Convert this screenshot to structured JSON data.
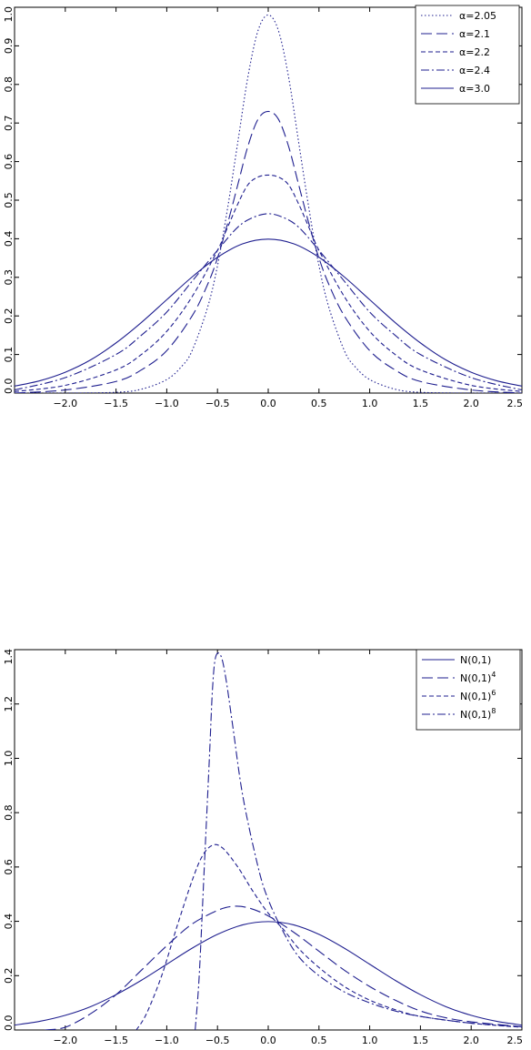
{
  "chart_data": [
    {
      "type": "line",
      "title": "",
      "xlabel": "",
      "ylabel": "",
      "xlim": [
        -2.5,
        2.5
      ],
      "ylim": [
        0.0,
        1.0
      ],
      "x_ticks": [
        "−2.0",
        "−1.5",
        "−1.0",
        "−0.5",
        "0.0",
        "0.5",
        "1.0",
        "1.5",
        "2.0",
        "2.5"
      ],
      "x_tick_values": [
        -2.0,
        -1.5,
        -1.0,
        -0.5,
        0.0,
        0.5,
        1.0,
        1.5,
        2.0,
        2.5
      ],
      "y_ticks": [
        "0.0",
        "0.1",
        "0.2",
        "0.3",
        "0.4",
        "0.5",
        "0.6",
        "0.7",
        "0.8",
        "0.9",
        "1.0"
      ],
      "y_tick_values": [
        0.0,
        0.1,
        0.2,
        0.3,
        0.4,
        0.5,
        0.6,
        0.7,
        0.8,
        0.9,
        1.0
      ],
      "legend_position": "top-right",
      "series": [
        {
          "name": "α=2.05",
          "dash": "1.5,2.5",
          "points": [
            [
              -2.5,
              0.0
            ],
            [
              -2.0,
              0.0
            ],
            [
              -1.5,
              0.002
            ],
            [
              -1.25,
              0.01
            ],
            [
              -1.0,
              0.035
            ],
            [
              -0.85,
              0.07
            ],
            [
              -0.75,
              0.11
            ],
            [
              -0.6,
              0.22
            ],
            [
              -0.5,
              0.33
            ],
            [
              -0.4,
              0.48
            ],
            [
              -0.3,
              0.65
            ],
            [
              -0.2,
              0.82
            ],
            [
              -0.1,
              0.94
            ],
            [
              0.0,
              0.98
            ],
            [
              0.1,
              0.94
            ],
            [
              0.2,
              0.82
            ],
            [
              0.3,
              0.65
            ],
            [
              0.4,
              0.48
            ],
            [
              0.5,
              0.33
            ],
            [
              0.6,
              0.22
            ],
            [
              0.75,
              0.11
            ],
            [
              0.85,
              0.07
            ],
            [
              1.0,
              0.035
            ],
            [
              1.25,
              0.01
            ],
            [
              1.5,
              0.002
            ],
            [
              2.0,
              0.0
            ],
            [
              2.5,
              0.0
            ]
          ]
        },
        {
          "name": "α=2.1",
          "dash": "12,5",
          "points": [
            [
              -2.5,
              0.0
            ],
            [
              -2.0,
              0.008
            ],
            [
              -1.5,
              0.03
            ],
            [
              -1.25,
              0.06
            ],
            [
              -1.0,
              0.11
            ],
            [
              -0.75,
              0.2
            ],
            [
              -0.6,
              0.28
            ],
            [
              -0.5,
              0.35
            ],
            [
              -0.4,
              0.44
            ],
            [
              -0.3,
              0.54
            ],
            [
              -0.2,
              0.64
            ],
            [
              -0.1,
              0.71
            ],
            [
              0.0,
              0.73
            ],
            [
              0.1,
              0.71
            ],
            [
              0.2,
              0.64
            ],
            [
              0.3,
              0.54
            ],
            [
              0.4,
              0.44
            ],
            [
              0.5,
              0.35
            ],
            [
              0.6,
              0.28
            ],
            [
              0.75,
              0.2
            ],
            [
              1.0,
              0.11
            ],
            [
              1.25,
              0.06
            ],
            [
              1.5,
              0.03
            ],
            [
              2.0,
              0.008
            ],
            [
              2.5,
              0.0
            ]
          ]
        },
        {
          "name": "α=2.2",
          "dash": "5,3",
          "points": [
            [
              -2.5,
              0.004
            ],
            [
              -2.0,
              0.02
            ],
            [
              -1.5,
              0.06
            ],
            [
              -1.25,
              0.1
            ],
            [
              -1.0,
              0.16
            ],
            [
              -0.75,
              0.25
            ],
            [
              -0.5,
              0.37
            ],
            [
              -0.4,
              0.43
            ],
            [
              -0.3,
              0.49
            ],
            [
              -0.2,
              0.54
            ],
            [
              -0.1,
              0.56
            ],
            [
              0.0,
              0.565
            ],
            [
              0.1,
              0.56
            ],
            [
              0.2,
              0.54
            ],
            [
              0.3,
              0.49
            ],
            [
              0.4,
              0.43
            ],
            [
              0.5,
              0.37
            ],
            [
              0.75,
              0.25
            ],
            [
              1.0,
              0.16
            ],
            [
              1.25,
              0.1
            ],
            [
              1.5,
              0.06
            ],
            [
              2.0,
              0.02
            ],
            [
              2.5,
              0.004
            ]
          ]
        },
        {
          "name": "α=2.4",
          "dash": "9,3,2,3",
          "points": [
            [
              -2.5,
              0.008
            ],
            [
              -2.0,
              0.04
            ],
            [
              -1.5,
              0.1
            ],
            [
              -1.25,
              0.15
            ],
            [
              -1.0,
              0.21
            ],
            [
              -0.75,
              0.29
            ],
            [
              -0.5,
              0.37
            ],
            [
              -0.3,
              0.43
            ],
            [
              -0.15,
              0.455
            ],
            [
              0.0,
              0.465
            ],
            [
              0.15,
              0.455
            ],
            [
              0.3,
              0.43
            ],
            [
              0.5,
              0.37
            ],
            [
              0.75,
              0.29
            ],
            [
              1.0,
              0.21
            ],
            [
              1.25,
              0.15
            ],
            [
              1.5,
              0.1
            ],
            [
              2.0,
              0.04
            ],
            [
              2.5,
              0.008
            ]
          ]
        },
        {
          "name": "α=3.0",
          "dash": "",
          "points": [
            [
              -2.5,
              0.018
            ],
            [
              -2.25,
              0.032
            ],
            [
              -2.0,
              0.054
            ],
            [
              -1.75,
              0.086
            ],
            [
              -1.5,
              0.13
            ],
            [
              -1.25,
              0.183
            ],
            [
              -1.0,
              0.242
            ],
            [
              -0.75,
              0.301
            ],
            [
              -0.5,
              0.352
            ],
            [
              -0.25,
              0.387
            ],
            [
              0.0,
              0.399
            ],
            [
              0.25,
              0.387
            ],
            [
              0.5,
              0.352
            ],
            [
              0.75,
              0.301
            ],
            [
              1.0,
              0.242
            ],
            [
              1.25,
              0.183
            ],
            [
              1.5,
              0.13
            ],
            [
              1.75,
              0.086
            ],
            [
              2.0,
              0.054
            ],
            [
              2.25,
              0.032
            ],
            [
              2.5,
              0.018
            ]
          ]
        }
      ]
    },
    {
      "type": "line",
      "title": "",
      "xlabel": "",
      "ylabel": "",
      "xlim": [
        -2.5,
        2.5
      ],
      "ylim": [
        0.0,
        1.4
      ],
      "x_ticks": [
        "−2.0",
        "−1.5",
        "−1.0",
        "−0.5",
        "0.0",
        "0.5",
        "1.0",
        "1.5",
        "2.0",
        "2.5"
      ],
      "x_tick_values": [
        -2.0,
        -1.5,
        -1.0,
        -0.5,
        0.0,
        0.5,
        1.0,
        1.5,
        2.0,
        2.5
      ],
      "y_ticks": [
        "0.0",
        "0.2",
        "0.4",
        "0.6",
        "0.8",
        "1.0",
        "1.2",
        "1.4"
      ],
      "y_tick_values": [
        0.0,
        0.2,
        0.4,
        0.6,
        0.8,
        1.0,
        1.2,
        1.4
      ],
      "legend_position": "top-right",
      "series": [
        {
          "name": "N(0,1)",
          "sup": "",
          "dash": "",
          "points": [
            [
              -2.5,
              0.018
            ],
            [
              -2.25,
              0.032
            ],
            [
              -2.0,
              0.054
            ],
            [
              -1.75,
              0.086
            ],
            [
              -1.5,
              0.13
            ],
            [
              -1.25,
              0.183
            ],
            [
              -1.0,
              0.242
            ],
            [
              -0.75,
              0.301
            ],
            [
              -0.5,
              0.352
            ],
            [
              -0.25,
              0.387
            ],
            [
              0.0,
              0.399
            ],
            [
              0.25,
              0.387
            ],
            [
              0.5,
              0.352
            ],
            [
              0.75,
              0.301
            ],
            [
              1.0,
              0.242
            ],
            [
              1.25,
              0.183
            ],
            [
              1.5,
              0.13
            ],
            [
              1.75,
              0.086
            ],
            [
              2.0,
              0.054
            ],
            [
              2.25,
              0.032
            ],
            [
              2.5,
              0.018
            ]
          ]
        },
        {
          "name": "N(0,1)",
          "sup": "4",
          "dash": "12,5",
          "points": [
            [
              -2.2,
              0.0
            ],
            [
              -2.0,
              0.01
            ],
            [
              -1.75,
              0.06
            ],
            [
              -1.5,
              0.13
            ],
            [
              -1.25,
              0.22
            ],
            [
              -1.0,
              0.31
            ],
            [
              -0.75,
              0.39
            ],
            [
              -0.5,
              0.44
            ],
            [
              -0.35,
              0.455
            ],
            [
              -0.2,
              0.45
            ],
            [
              0.0,
              0.42
            ],
            [
              0.25,
              0.36
            ],
            [
              0.5,
              0.29
            ],
            [
              0.75,
              0.22
            ],
            [
              1.0,
              0.16
            ],
            [
              1.25,
              0.11
            ],
            [
              1.5,
              0.07
            ],
            [
              1.75,
              0.045
            ],
            [
              2.0,
              0.03
            ],
            [
              2.5,
              0.012
            ]
          ]
        },
        {
          "name": "N(0,1)",
          "sup": "6",
          "dash": "5,3",
          "points": [
            [
              -1.3,
              0.0
            ],
            [
              -1.2,
              0.06
            ],
            [
              -1.05,
              0.2
            ],
            [
              -0.9,
              0.38
            ],
            [
              -0.75,
              0.55
            ],
            [
              -0.65,
              0.64
            ],
            [
              -0.55,
              0.68
            ],
            [
              -0.45,
              0.67
            ],
            [
              -0.3,
              0.6
            ],
            [
              -0.15,
              0.51
            ],
            [
              0.0,
              0.43
            ],
            [
              0.15,
              0.37
            ],
            [
              0.3,
              0.3
            ],
            [
              0.5,
              0.23
            ],
            [
              0.75,
              0.16
            ],
            [
              1.0,
              0.11
            ],
            [
              1.25,
              0.075
            ],
            [
              1.5,
              0.05
            ],
            [
              2.0,
              0.025
            ],
            [
              2.5,
              0.01
            ]
          ]
        },
        {
          "name": "N(0,1)",
          "sup": "8",
          "dash": "9,3,2,3",
          "points": [
            [
              -0.72,
              0.0
            ],
            [
              -0.68,
              0.2
            ],
            [
              -0.63,
              0.6
            ],
            [
              -0.58,
              1.0
            ],
            [
              -0.55,
              1.25
            ],
            [
              -0.52,
              1.37
            ],
            [
              -0.47,
              1.38
            ],
            [
              -0.42,
              1.3
            ],
            [
              -0.35,
              1.12
            ],
            [
              -0.25,
              0.86
            ],
            [
              -0.1,
              0.6
            ],
            [
              0.0,
              0.48
            ],
            [
              0.15,
              0.36
            ],
            [
              0.3,
              0.27
            ],
            [
              0.5,
              0.2
            ],
            [
              0.75,
              0.14
            ],
            [
              1.0,
              0.1
            ],
            [
              1.25,
              0.07
            ],
            [
              1.5,
              0.05
            ],
            [
              2.0,
              0.025
            ],
            [
              2.5,
              0.012
            ]
          ]
        }
      ]
    }
  ]
}
